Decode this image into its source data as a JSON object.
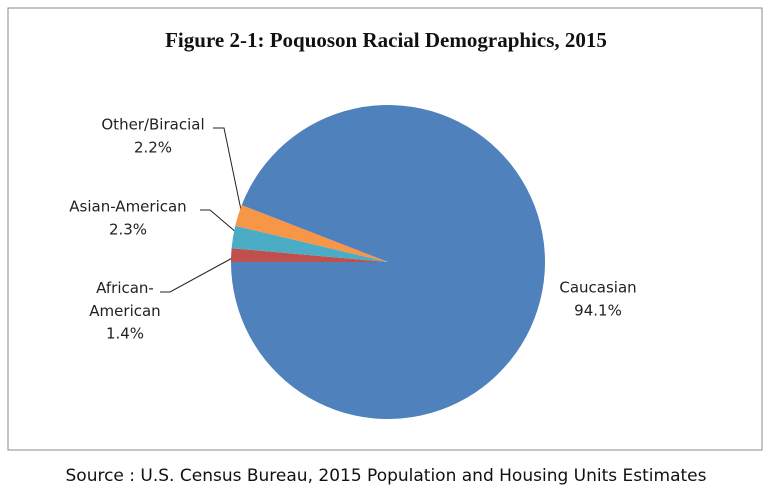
{
  "chart_data": {
    "type": "pie",
    "title": "Figure 2-1: Poquoson Racial Demographics, 2015",
    "categories": [
      "African-American",
      "Asian-American",
      "Other/Biracial",
      "Caucasian"
    ],
    "values": [
      1.4,
      2.3,
      2.2,
      94.1
    ],
    "value_labels": [
      "1.4%",
      "2.3%",
      "2.2%",
      "94.1%"
    ],
    "colors": [
      "#c0504d",
      "#4bacc6",
      "#f79646",
      "#4f81bd"
    ],
    "source": "Source : U.S. Census Bureau, 2015 Population and Housing Units Estimates"
  }
}
